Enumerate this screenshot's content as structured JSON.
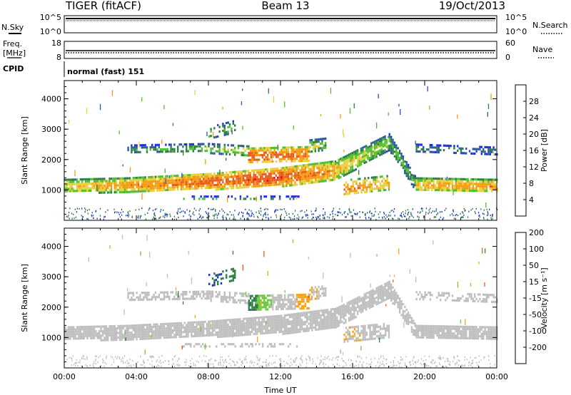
{
  "header": {
    "radar": "TIGER (fitACF)",
    "beam": "Beam 13",
    "date": "19/Oct/2013"
  },
  "noise_panel": {
    "left_label": "N.Sky",
    "right_label": "N.Search",
    "left_ticks": [
      "10^5",
      "10^0"
    ],
    "right_ticks": [
      "10^5",
      "10^0"
    ]
  },
  "freq_panel": {
    "left_label_1": "Freq.",
    "left_label_2": "[MHz]",
    "right_label": "Nave",
    "left_ticks": [
      "18",
      "8"
    ],
    "right_ticks": [
      "60",
      "0"
    ]
  },
  "cpid_panel": {
    "label": "CPID",
    "text": "normal (fast) 151"
  },
  "colors": {
    "power": [
      "#1f2fe0",
      "#2a55a8",
      "#2e7d46",
      "#4fbf2f",
      "#e8d03a",
      "#f39c12",
      "#ea5a1a",
      "#e01010"
    ],
    "velocity": [
      "#e51010",
      "#f05a14",
      "#f5a418",
      "#bfbfbf",
      "#bfbfbf",
      "#6ec93a",
      "#2e7d46",
      "#2038c0"
    ]
  },
  "chart_data": [
    {
      "type": "heatmap",
      "name": "power",
      "ylabel": "Slant Range [km]",
      "ylim": [
        0,
        4600
      ],
      "yticks": [
        "1000",
        "2000",
        "3000",
        "4000"
      ],
      "xlim_hours": [
        0,
        24
      ],
      "colorbar": {
        "label": "Power [dB]",
        "ticks": [
          "4",
          "8",
          "12",
          "16",
          "20",
          "24",
          "28"
        ],
        "range": [
          0,
          32
        ]
      },
      "bands": [
        {
          "t": [
            0,
            3.5
          ],
          "ctr": [
            1150,
            1190
          ],
          "w": [
            220,
            230
          ],
          "v": [
            18,
            22
          ],
          "d": 0.9
        },
        {
          "t": [
            3.5,
            8
          ],
          "ctr": [
            1190,
            1300
          ],
          "w": [
            230,
            260
          ],
          "v": [
            22,
            25
          ],
          "d": 0.9
        },
        {
          "t": [
            8,
            12
          ],
          "ctr": [
            1300,
            1450
          ],
          "w": [
            260,
            300
          ],
          "v": [
            25,
            27
          ],
          "d": 0.9
        },
        {
          "t": [
            12,
            15
          ],
          "ctr": [
            1450,
            1650
          ],
          "w": [
            300,
            330
          ],
          "v": [
            26,
            22
          ],
          "d": 0.9
        },
        {
          "t": [
            15,
            18
          ],
          "ctr": [
            1650,
            2600
          ],
          "w": [
            320,
            270
          ],
          "v": [
            20,
            15
          ],
          "d": 0.85
        },
        {
          "t": [
            18,
            19.5
          ],
          "ctr": [
            2600,
            1200
          ],
          "w": [
            270,
            220
          ],
          "v": [
            14,
            12
          ],
          "d": 0.8
        },
        {
          "t": [
            19.5,
            24
          ],
          "ctr": [
            1200,
            1150
          ],
          "w": [
            220,
            220
          ],
          "v": [
            20,
            22
          ],
          "d": 0.9
        },
        {
          "t": [
            3.5,
            8
          ],
          "ctr": [
            2350,
            2400
          ],
          "w": [
            150,
            150
          ],
          "v": [
            10,
            14
          ],
          "d": 0.55
        },
        {
          "t": [
            8,
            10.2
          ],
          "ctr": [
            2400,
            2300
          ],
          "w": [
            150,
            170
          ],
          "v": [
            14,
            18
          ],
          "d": 0.55
        },
        {
          "t": [
            10.2,
            13.6
          ],
          "ctr": [
            2150,
            2200
          ],
          "w": [
            250,
            250
          ],
          "v": [
            26,
            24
          ],
          "d": 0.75
        },
        {
          "t": [
            13.6,
            14.5
          ],
          "ctr": [
            2450,
            2550
          ],
          "w": [
            220,
            180
          ],
          "v": [
            18,
            14
          ],
          "d": 0.6
        },
        {
          "t": [
            8,
            9.5
          ],
          "ctr": [
            2900,
            3100
          ],
          "w": [
            200,
            220
          ],
          "v": [
            14,
            12
          ],
          "d": 0.35
        },
        {
          "t": [
            15.5,
            18
          ],
          "ctr": [
            1100,
            1250
          ],
          "w": [
            250,
            250
          ],
          "v": [
            24,
            20
          ],
          "d": 0.65
        },
        {
          "t": [
            19.5,
            24
          ],
          "ctr": [
            2400,
            2300
          ],
          "w": [
            130,
            130
          ],
          "v": [
            10,
            8
          ],
          "d": 0.45
        },
        {
          "t": [
            6.5,
            13
          ],
          "ctr": [
            750,
            750
          ],
          "w": [
            70,
            70
          ],
          "v": [
            12,
            10
          ],
          "d": 0.35
        }
      ]
    },
    {
      "type": "heatmap",
      "name": "velocity",
      "ylabel": "Slant Range [km]",
      "ylim": [
        0,
        4600
      ],
      "yticks": [
        "1000",
        "2000",
        "3000",
        "4000"
      ],
      "xticks": [
        "00:00",
        "04:00",
        "08:00",
        "12:00",
        "16:00",
        "20:00",
        "00:00"
      ],
      "xlabel": "Time UT",
      "xlim_hours": [
        0,
        24
      ],
      "colorbar": {
        "label": "Velocity [m s⁻¹]",
        "ticks": [
          "-200",
          "-100",
          "-50",
          "-15",
          "15",
          "50",
          "100",
          "200"
        ],
        "range": [
          -250,
          250
        ]
      },
      "bands": [
        {
          "t": [
            0,
            3.5
          ],
          "ctr": [
            1150,
            1190
          ],
          "w": [
            220,
            230
          ],
          "v": [
            0,
            0
          ],
          "d": 0.9
        },
        {
          "t": [
            3.5,
            8
          ],
          "ctr": [
            1190,
            1300
          ],
          "w": [
            230,
            260
          ],
          "v": [
            0,
            0
          ],
          "d": 0.9
        },
        {
          "t": [
            8,
            12
          ],
          "ctr": [
            1300,
            1450
          ],
          "w": [
            260,
            300
          ],
          "v": [
            0,
            0
          ],
          "d": 0.9
        },
        {
          "t": [
            12,
            15
          ],
          "ctr": [
            1450,
            1650
          ],
          "w": [
            300,
            330
          ],
          "v": [
            0,
            0
          ],
          "d": 0.9
        },
        {
          "t": [
            15,
            18
          ],
          "ctr": [
            1650,
            2600
          ],
          "w": [
            320,
            270
          ],
          "v": [
            0,
            0
          ],
          "d": 0.85
        },
        {
          "t": [
            18,
            19.5
          ],
          "ctr": [
            2600,
            1200
          ],
          "w": [
            270,
            220
          ],
          "v": [
            30,
            50
          ],
          "d": 0.8
        },
        {
          "t": [
            19.5,
            24
          ],
          "ctr": [
            1200,
            1150
          ],
          "w": [
            220,
            220
          ],
          "v": [
            0,
            0
          ],
          "d": 0.9
        },
        {
          "t": [
            3.5,
            8
          ],
          "ctr": [
            2350,
            2400
          ],
          "w": [
            150,
            150
          ],
          "v": [
            -40,
            -50
          ],
          "d": 0.55
        },
        {
          "t": [
            8,
            10.2
          ],
          "ctr": [
            2400,
            2300
          ],
          "w": [
            150,
            170
          ],
          "v": [
            -50,
            -40
          ],
          "d": 0.55
        },
        {
          "t": [
            10.2,
            13.6
          ],
          "ctr": [
            2150,
            2200
          ],
          "w": [
            250,
            250
          ],
          "v": [
            160,
            -120
          ],
          "d": 0.75
        },
        {
          "t": [
            13.6,
            14.5
          ],
          "ctr": [
            2450,
            2550
          ],
          "w": [
            220,
            180
          ],
          "v": [
            -60,
            -40
          ],
          "d": 0.6
        },
        {
          "t": [
            8,
            9.5
          ],
          "ctr": [
            2900,
            3100
          ],
          "w": [
            200,
            220
          ],
          "v": [
            200,
            150
          ],
          "d": 0.35
        },
        {
          "t": [
            15.5,
            18
          ],
          "ctr": [
            1100,
            1250
          ],
          "w": [
            250,
            250
          ],
          "v": [
            -60,
            -40
          ],
          "d": 0.65
        },
        {
          "t": [
            19.5,
            24
          ],
          "ctr": [
            2400,
            2300
          ],
          "w": [
            130,
            130
          ],
          "v": [
            0,
            0
          ],
          "d": 0.45
        },
        {
          "t": [
            6.5,
            13
          ],
          "ctr": [
            750,
            750
          ],
          "w": [
            70,
            70
          ],
          "v": [
            -30,
            20
          ],
          "d": 0.35
        }
      ]
    }
  ]
}
